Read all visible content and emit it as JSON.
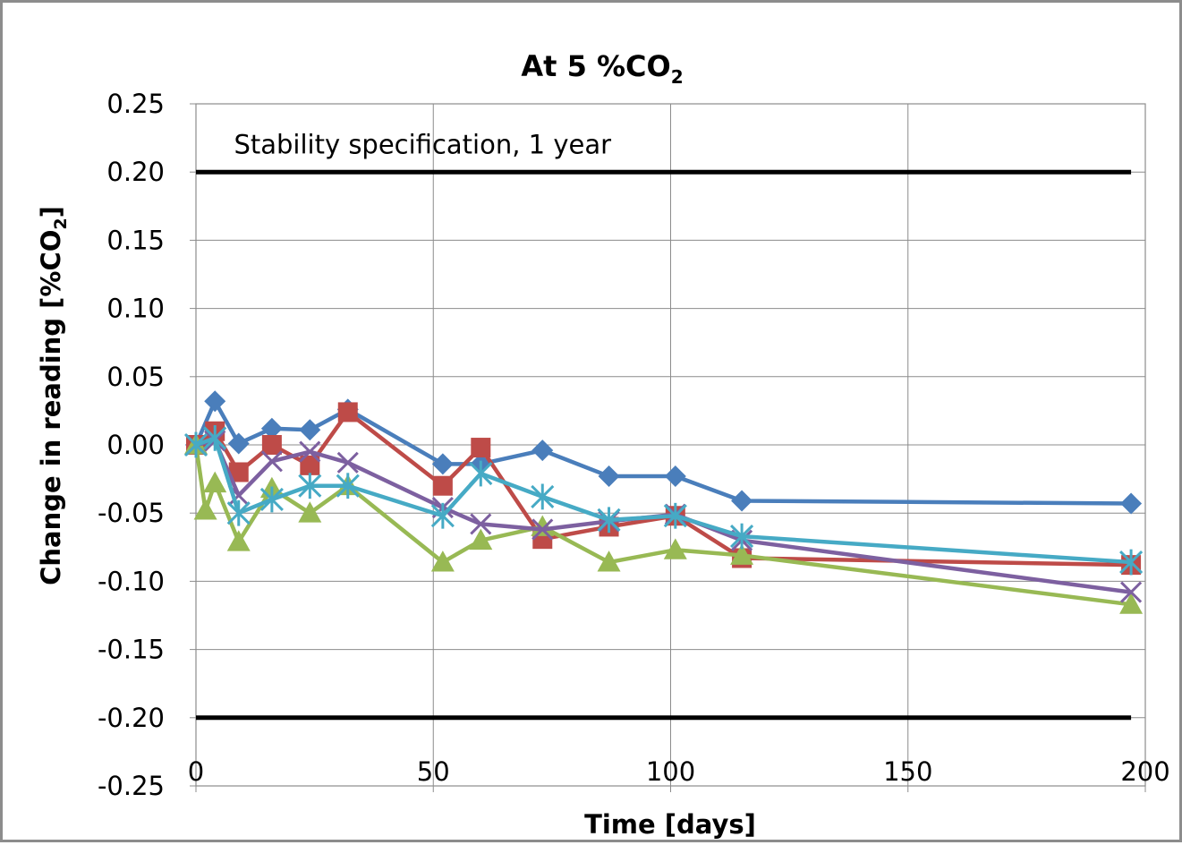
{
  "chart_data": {
    "type": "line",
    "title": {
      "main": "At 5 %CO",
      "subscript": "2"
    },
    "xlabel": "Time [days]",
    "ylabel": {
      "main": "Change in reading [%CO",
      "subscript": "2",
      "tail": "]"
    },
    "xlim": [
      0,
      200
    ],
    "ylim": [
      -0.25,
      0.25
    ],
    "x_ticks": [
      "0",
      "50",
      "100",
      "150",
      "200"
    ],
    "y_ticks": [
      "0.25",
      "0.20",
      "0.15",
      "0.10",
      "0.05",
      "0.00",
      "-0.05",
      "-0.10",
      "-0.15",
      "-0.20",
      "-0.25"
    ],
    "grid": true,
    "legend": "none",
    "reference_lines": [
      {
        "y": 0.2,
        "x_range": [
          0,
          197
        ],
        "color": "#000000"
      },
      {
        "y": -0.2,
        "x_range": [
          0,
          197
        ],
        "color": "#000000"
      }
    ],
    "annotations": [
      {
        "text": "Stability specification, 1 year",
        "x": 8,
        "y": 0.22
      }
    ],
    "series": [
      {
        "marker": "diamond",
        "color": "#4a7ebb",
        "x": [
          0,
          4,
          9,
          16,
          24,
          32,
          52,
          60,
          73,
          87,
          101,
          115,
          197
        ],
        "y": [
          0.0,
          0.032,
          0.001,
          0.012,
          0.011,
          0.026,
          -0.014,
          -0.014,
          -0.004,
          -0.023,
          -0.023,
          -0.041,
          -0.043
        ]
      },
      {
        "marker": "square",
        "color": "#be4b48",
        "x": [
          0,
          4,
          9,
          16,
          24,
          32,
          52,
          60,
          73,
          87,
          101,
          115,
          197
        ],
        "y": [
          0.0,
          0.01,
          -0.02,
          0.0,
          -0.015,
          0.024,
          -0.03,
          -0.002,
          -0.069,
          -0.06,
          -0.052,
          -0.083,
          -0.088
        ]
      },
      {
        "marker": "triangle",
        "color": "#98b954",
        "x": [
          0,
          2,
          4,
          9,
          16,
          24,
          32,
          52,
          60,
          73,
          87,
          101,
          115,
          197
        ],
        "y": [
          0.0,
          -0.048,
          -0.028,
          -0.071,
          -0.032,
          -0.05,
          -0.03,
          -0.086,
          -0.07,
          -0.06,
          -0.086,
          -0.077,
          -0.081,
          -0.117
        ]
      },
      {
        "marker": "x",
        "color": "#7d60a0",
        "x": [
          0,
          4,
          9,
          16,
          24,
          32,
          52,
          60,
          73,
          87,
          101,
          115,
          197
        ],
        "y": [
          0.0,
          0.003,
          -0.037,
          -0.012,
          -0.005,
          -0.013,
          -0.046,
          -0.058,
          -0.062,
          -0.056,
          -0.051,
          -0.07,
          -0.108
        ]
      },
      {
        "marker": "star",
        "color": "#46aac5",
        "x": [
          0,
          4,
          9,
          16,
          24,
          32,
          52,
          60,
          73,
          87,
          101,
          115,
          197
        ],
        "y": [
          0.0,
          0.005,
          -0.05,
          -0.04,
          -0.03,
          -0.03,
          -0.052,
          -0.021,
          -0.038,
          -0.055,
          -0.052,
          -0.067,
          -0.086
        ]
      }
    ]
  }
}
